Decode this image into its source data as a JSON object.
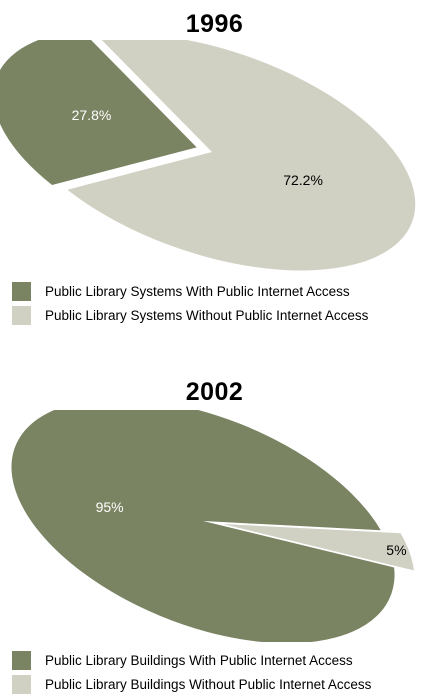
{
  "colors": {
    "with_access": "#7a8462",
    "without_access": "#d0d0c3"
  },
  "chart_data": [
    {
      "type": "pie",
      "title": "1996",
      "categories": [
        "Public Library Systems With Public Internet Access",
        "Public Library Systems Without Public Internet Access"
      ],
      "values": [
        27.8,
        72.2
      ],
      "data_labels": [
        "27.8%",
        "72.2%"
      ],
      "exploded": [
        true,
        false
      ],
      "legend": "bottom-left"
    },
    {
      "type": "pie",
      "title": "2002",
      "categories": [
        "Public Library Buildings With Public Internet Access",
        "Public Library Buildings Without Public Internet Access"
      ],
      "values": [
        95,
        5
      ],
      "data_labels": [
        "95%",
        "5%"
      ],
      "exploded": [
        false,
        true
      ],
      "legend": "bottom-left"
    }
  ]
}
